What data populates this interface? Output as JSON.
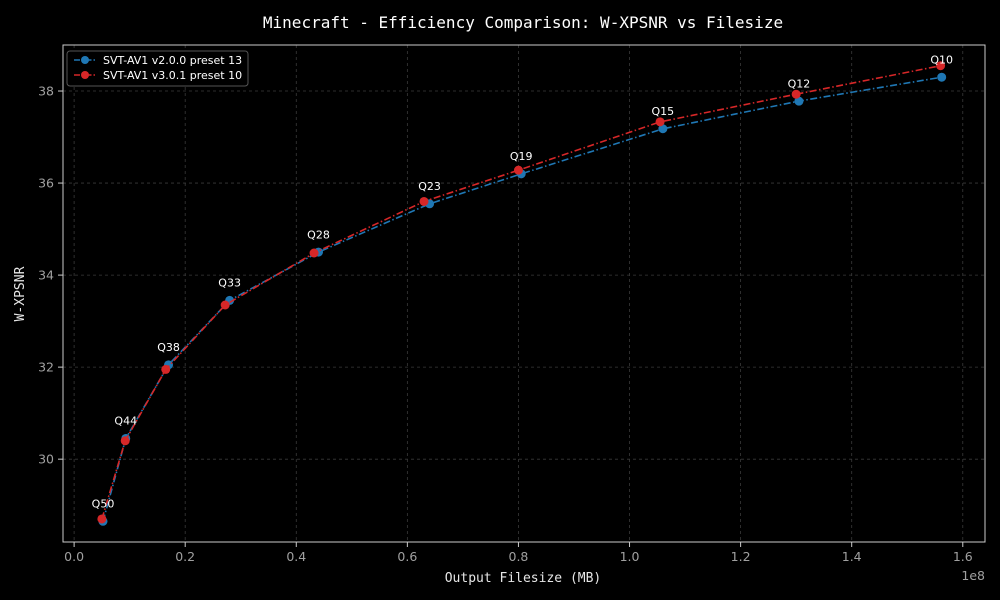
{
  "chart_data": {
    "type": "line",
    "title": "Minecraft - Efficiency Comparison: W-XPSNR vs Filesize",
    "xlabel": "Output Filesize (MB)",
    "ylabel": "W-XPSNR",
    "x_offset_label": "1e8",
    "xlim": [
      -0.02,
      1.64
    ],
    "ylim": [
      28.2,
      39.0
    ],
    "xticks": [
      0.0,
      0.2,
      0.4,
      0.6,
      0.8,
      1.0,
      1.2,
      1.4,
      1.6
    ],
    "xtick_labels": [
      "0.0",
      "0.2",
      "0.4",
      "0.6",
      "0.8",
      "1.0",
      "1.2",
      "1.4",
      "1.6"
    ],
    "yticks": [
      30,
      32,
      34,
      36,
      38
    ],
    "ytick_labels": [
      "30",
      "32",
      "34",
      "36",
      "38"
    ],
    "grid": true,
    "legend_position": "top-left",
    "series": [
      {
        "name": "SVT-AV1 v2.0.0 preset 13",
        "color": "#1f77b4",
        "x": [
          0.052,
          0.093,
          0.17,
          0.28,
          0.44,
          0.64,
          0.805,
          1.06,
          1.305,
          1.562
        ],
        "y": [
          28.65,
          30.45,
          32.05,
          33.45,
          34.5,
          35.55,
          36.2,
          37.18,
          37.78,
          38.3
        ]
      },
      {
        "name": "SVT-AV1 v3.0.1 preset 10",
        "color": "#d62728",
        "x": [
          0.05,
          0.092,
          0.165,
          0.272,
          0.432,
          0.63,
          0.8,
          1.055,
          1.3,
          1.56
        ],
        "y": [
          28.7,
          30.4,
          31.95,
          33.35,
          34.48,
          35.6,
          36.28,
          37.33,
          37.93,
          38.55
        ]
      }
    ],
    "annotations": [
      {
        "text": "Q50",
        "x": 0.052,
        "y": 28.95
      },
      {
        "text": "Q44",
        "x": 0.093,
        "y": 30.75
      },
      {
        "text": "Q38",
        "x": 0.17,
        "y": 32.35
      },
      {
        "text": "Q33",
        "x": 0.28,
        "y": 33.75
      },
      {
        "text": "Q28",
        "x": 0.44,
        "y": 34.8
      },
      {
        "text": "Q23",
        "x": 0.64,
        "y": 35.85
      },
      {
        "text": "Q19",
        "x": 0.805,
        "y": 36.5
      },
      {
        "text": "Q15",
        "x": 1.06,
        "y": 37.48
      },
      {
        "text": "Q12",
        "x": 1.305,
        "y": 38.08
      },
      {
        "text": "Q10",
        "x": 1.562,
        "y": 38.6
      }
    ]
  }
}
